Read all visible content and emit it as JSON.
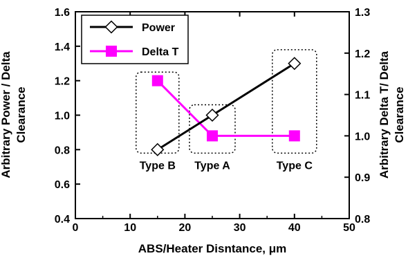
{
  "chart_data": {
    "type": "line",
    "xlabel": "ABS/Heater Disntance, μm",
    "ylabel": "Arbitrary Power / Delta Clearance",
    "y2label": "Arbitrary Delta T/ Delta Clearance",
    "xlim": [
      0,
      50
    ],
    "ylim": [
      0.4,
      1.6
    ],
    "y2lim": [
      0.8,
      1.3
    ],
    "xticks": [
      "0",
      "10",
      "20",
      "30",
      "40",
      "50"
    ],
    "yticks": [
      "0.4",
      "0.6",
      "0.8",
      "1.0",
      "1.2",
      "1.4",
      "1.6"
    ],
    "y2ticks": [
      "0.8",
      "0.9",
      "1.0",
      "1.1",
      "1.2",
      "1.3"
    ],
    "legend_position": "top-left",
    "grid": false,
    "series": [
      {
        "name": "Power",
        "axis": "left",
        "color": "#000000",
        "marker": "diamond-open",
        "x": [
          15,
          25,
          40
        ],
        "y": [
          0.8,
          1.0,
          1.3
        ]
      },
      {
        "name": "Delta T",
        "axis": "left",
        "color": "#ff00ff",
        "marker": "square-filled",
        "x": [
          15,
          25,
          40
        ],
        "y": [
          1.2,
          0.88,
          0.88
        ]
      }
    ],
    "groups": [
      {
        "label": "Type B",
        "x": 15
      },
      {
        "label": "Type A",
        "x": 25
      },
      {
        "label": "Type C",
        "x": 40
      }
    ]
  }
}
